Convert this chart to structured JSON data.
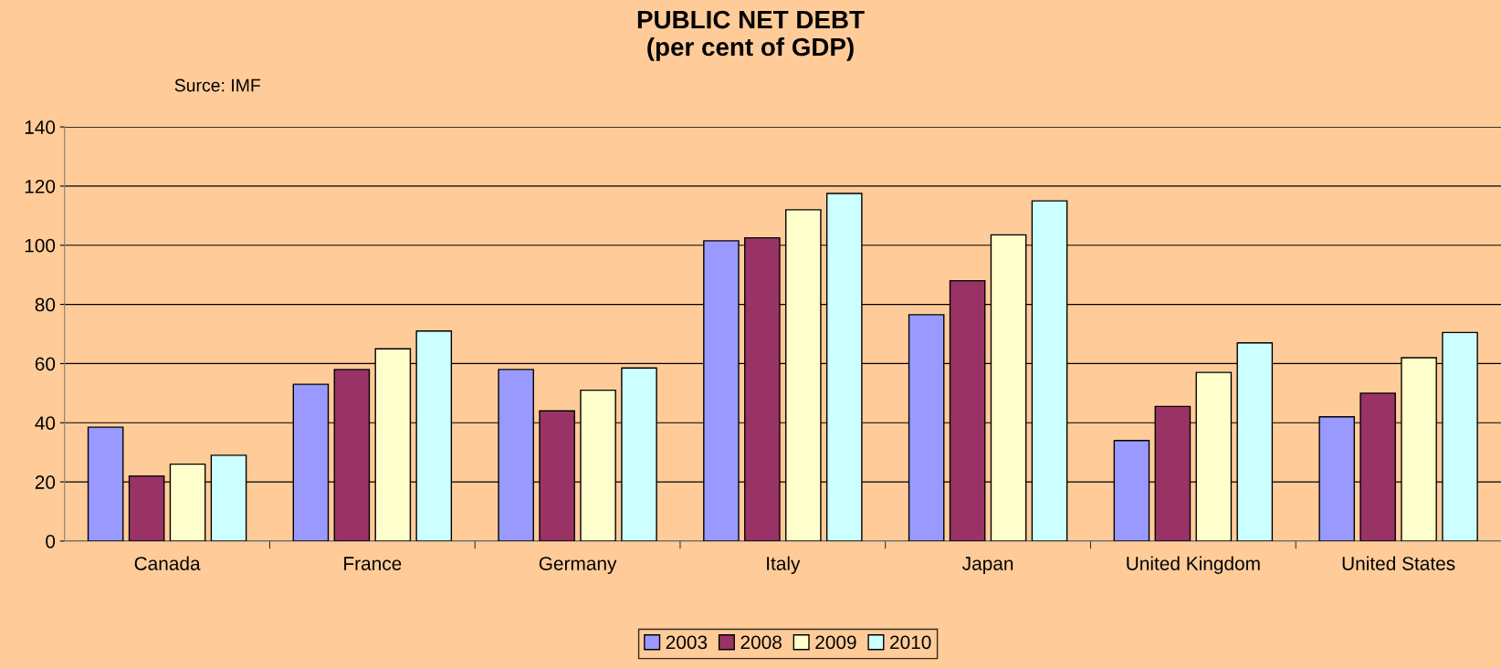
{
  "chart_data": {
    "type": "bar",
    "title": "PUBLIC NET DEBT\n(per cent of GDP)",
    "annotations": [
      "Surce: IMF"
    ],
    "categories": [
      "Canada",
      "France",
      "Germany",
      "Italy",
      "Japan",
      "United Kingdom",
      "United States"
    ],
    "series": [
      {
        "name": "2003",
        "color": "#9999ff",
        "values": [
          38.5,
          53,
          58,
          101.5,
          76.5,
          34,
          42
        ]
      },
      {
        "name": "2008",
        "color": "#993366",
        "values": [
          22,
          58,
          44,
          102.5,
          88,
          45.5,
          50
        ]
      },
      {
        "name": "2009",
        "color": "#ffffcc",
        "values": [
          26,
          65,
          51,
          112,
          103.5,
          57,
          62
        ]
      },
      {
        "name": "2010",
        "color": "#ccffff",
        "values": [
          29,
          71,
          58.5,
          117.5,
          115,
          67,
          70.5
        ]
      }
    ],
    "ylim": [
      0,
      140
    ],
    "yticks": [
      0,
      20,
      40,
      60,
      80,
      100,
      120,
      140
    ],
    "grid": "y",
    "legend": "bottom"
  }
}
